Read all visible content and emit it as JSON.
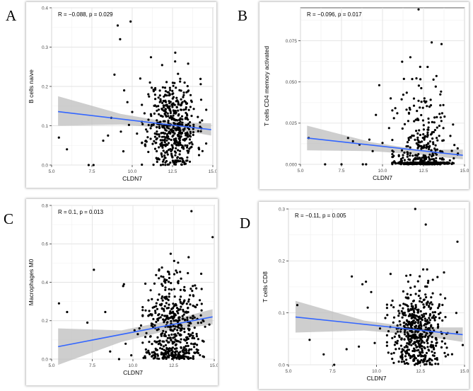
{
  "figure": {
    "labels": [
      "A",
      "B",
      "C",
      "D"
    ]
  },
  "chart_data": [
    {
      "panel": "A",
      "type": "scatter",
      "xlabel": "CLDN7",
      "ylabel": "B cells naive",
      "stat_r": "R = −0.088,",
      "stat_p": "p = 0.029",
      "xlim": [
        5,
        15
      ],
      "ylim": [
        0,
        0.4
      ],
      "xticks": [
        5.0,
        7.5,
        10.0,
        12.5,
        15.0
      ],
      "xticklabels": [
        "5.0",
        "7.5",
        "10.0",
        "12.5",
        "15.0"
      ],
      "yticks": [
        0.0,
        0.1,
        0.2,
        0.3,
        0.4
      ],
      "yticklabels": [
        "0.0",
        "0.1",
        "0.2",
        "0.3",
        "0.4"
      ],
      "fit": {
        "x": [
          5.4,
          14.9
        ],
        "y": [
          0.136,
          0.09
        ]
      },
      "ci": {
        "x": [
          5.4,
          9.3,
          12.2,
          14.9
        ],
        "upper": [
          0.175,
          0.13,
          0.11,
          0.106
        ],
        "lower": [
          0.1,
          0.103,
          0.094,
          0.075
        ]
      },
      "sparse_points": [
        [
          5.45,
          0.07
        ],
        [
          5.95,
          0.04
        ],
        [
          7.3,
          0.0
        ],
        [
          7.6,
          0.0
        ],
        [
          8.2,
          0.062
        ],
        [
          8.5,
          0.075
        ],
        [
          8.7,
          0.12
        ],
        [
          9.1,
          0.355
        ],
        [
          9.25,
          0.32
        ],
        [
          9.45,
          0.035
        ],
        [
          9.5,
          0.19
        ],
        [
          9.9,
          0.365
        ],
        [
          10.0,
          0.135
        ],
        [
          10.15,
          0.405
        ],
        [
          10.3,
          0.08
        ],
        [
          10.5,
          0.22
        ],
        [
          9.7,
          0.16
        ],
        [
          10.8,
          0.05
        ],
        [
          9.3,
          0.085
        ],
        [
          8.9,
          0.23
        ],
        [
          10.6,
          0.11
        ],
        [
          11.1,
          0.21
        ],
        [
          11.0,
          0.18
        ],
        [
          9.8,
          0.102
        ]
      ],
      "cloud": {
        "x_center": 12.5,
        "x_spread": 1.25,
        "y_mean": 0.1,
        "y_sd": 0.06,
        "n": 520,
        "ymax": 0.35,
        "seed": 11
      }
    },
    {
      "panel": "B",
      "type": "scatter",
      "xlabel": "CLDN7",
      "ylabel": "T cells CD4 memory activated",
      "stat_r": "R = −0.096,",
      "stat_p": "p = 0.017",
      "xlim": [
        5,
        15
      ],
      "ylim": [
        0,
        0.095
      ],
      "xticks": [
        5.0,
        7.5,
        10.0,
        12.5,
        15.0
      ],
      "xticklabels": [
        "5.0",
        "7.5",
        "10.0",
        "12.5",
        "15.0"
      ],
      "yticks": [
        0.0,
        0.025,
        0.05,
        0.075
      ],
      "yticklabels": [
        "0.000",
        "0.025",
        "0.050",
        "0.075"
      ],
      "fit": {
        "x": [
          5.4,
          14.9
        ],
        "y": [
          0.016,
          0.0055
        ]
      },
      "ci": {
        "x": [
          5.4,
          9.3,
          12.2,
          14.9
        ],
        "upper": [
          0.0235,
          0.0135,
          0.009,
          0.009
        ],
        "lower": [
          0.0085,
          0.008,
          0.006,
          0.003
        ]
      },
      "sparse_points": [
        [
          5.5,
          0.016
        ],
        [
          6.5,
          0.0
        ],
        [
          7.5,
          0.0
        ],
        [
          7.9,
          0.016
        ],
        [
          8.2,
          0.014
        ],
        [
          8.6,
          0.012
        ],
        [
          8.8,
          0.0
        ],
        [
          9.0,
          0.0
        ],
        [
          9.2,
          0.015
        ],
        [
          9.4,
          0.008
        ],
        [
          9.6,
          0.03
        ],
        [
          9.8,
          0.048
        ],
        [
          10.0,
          0.013
        ],
        [
          10.4,
          0.022
        ],
        [
          10.7,
          0.028
        ],
        [
          10.9,
          0.031
        ],
        [
          11.0,
          0.005
        ],
        [
          12.2,
          0.094
        ],
        [
          13.0,
          0.074
        ],
        [
          13.6,
          0.073
        ],
        [
          11.7,
          0.065
        ],
        [
          10.5,
          0.04
        ]
      ],
      "cloud": {
        "x_center": 12.4,
        "x_spread": 1.4,
        "y_mean": 0.006,
        "y_sd": 0.022,
        "n": 520,
        "ymax": 0.073,
        "seed": 23,
        "zero_frac": 0.45
      }
    },
    {
      "panel": "C",
      "type": "scatter",
      "xlabel": "CLDN7",
      "ylabel": "Macrophages M0",
      "stat_r": "R = 0.1,",
      "stat_p": "p = 0.013",
      "xlim": [
        5,
        15
      ],
      "ylim": [
        0,
        0.8
      ],
      "xticks": [
        5.0,
        7.5,
        10.0,
        12.5,
        15.0
      ],
      "xticklabels": [
        "5.0",
        "7.5",
        "10.0",
        "12.5",
        "15.0"
      ],
      "yticks": [
        0.0,
        0.2,
        0.4,
        0.6,
        0.8
      ],
      "yticklabels": [
        "0.0",
        "0.2",
        "0.4",
        "0.6",
        "0.8"
      ],
      "fit": {
        "x": [
          5.4,
          14.9
        ],
        "y": [
          0.065,
          0.22
        ]
      },
      "ci": {
        "x": [
          5.4,
          9.3,
          12.2,
          14.9
        ],
        "upper": [
          0.16,
          0.15,
          0.2,
          0.26
        ],
        "lower": [
          -0.03,
          0.09,
          0.15,
          0.18
        ]
      },
      "sparse_points": [
        [
          5.45,
          0.29
        ],
        [
          5.95,
          0.245
        ],
        [
          7.2,
          0.19
        ],
        [
          7.6,
          0.465
        ],
        [
          8.3,
          0.245
        ],
        [
          8.6,
          0.04
        ],
        [
          9.15,
          0.0
        ],
        [
          9.4,
          0.38
        ],
        [
          9.45,
          0.39
        ],
        [
          9.55,
          0.08
        ],
        [
          9.9,
          0.02
        ],
        [
          10.1,
          0.15
        ],
        [
          10.4,
          0.16
        ],
        [
          10.5,
          0.175
        ],
        [
          10.8,
          0.05
        ],
        [
          10.3,
          0.13
        ],
        [
          11.0,
          0.09
        ],
        [
          14.9,
          0.635
        ],
        [
          13.6,
          0.77
        ],
        [
          14.2,
          0.19
        ],
        [
          14.7,
          0.18
        ]
      ],
      "cloud": {
        "x_center": 12.5,
        "x_spread": 1.35,
        "y_mean": 0.16,
        "y_sd": 0.16,
        "n": 520,
        "ymax": 0.72,
        "seed": 37
      }
    },
    {
      "panel": "D",
      "type": "scatter",
      "xlabel": "CLDN7",
      "ylabel": "T cells CD8",
      "stat_r": "R = −0.11,",
      "stat_p": "p = 0.005",
      "xlim": [
        5,
        15
      ],
      "ylim": [
        0,
        0.3
      ],
      "xticks": [
        5.0,
        7.5,
        10.0,
        12.5,
        15.0
      ],
      "xticklabels": [
        "5.0",
        "7.5",
        "10.0",
        "12.5",
        "15.0"
      ],
      "yticks": [
        0.0,
        0.1,
        0.2,
        0.3
      ],
      "yticklabels": [
        "0.0",
        "0.1",
        "0.2",
        "0.3"
      ],
      "fit": {
        "x": [
          5.4,
          14.9
        ],
        "y": [
          0.092,
          0.058
        ]
      },
      "ci": {
        "x": [
          5.4,
          9.3,
          12.2,
          14.9
        ],
        "upper": [
          0.123,
          0.085,
          0.072,
          0.072
        ],
        "lower": [
          0.062,
          0.066,
          0.058,
          0.044
        ]
      },
      "sparse_points": [
        [
          5.5,
          0.115
        ],
        [
          6.2,
          0.048
        ],
        [
          7.0,
          0.02
        ],
        [
          7.6,
          0.0
        ],
        [
          8.3,
          0.03
        ],
        [
          8.6,
          0.17
        ],
        [
          9.0,
          0.035
        ],
        [
          9.2,
          0.155
        ],
        [
          9.4,
          0.16
        ],
        [
          9.5,
          0.11
        ],
        [
          9.7,
          0.14
        ],
        [
          9.9,
          0.042
        ],
        [
          10.2,
          0.07
        ],
        [
          10.5,
          0.09
        ],
        [
          10.8,
          0.175
        ],
        [
          11.1,
          0.06
        ],
        [
          14.6,
          0.237
        ],
        [
          12.2,
          0.3
        ],
        [
          12.8,
          0.27
        ],
        [
          14.9,
          0.038
        ],
        [
          13.9,
          0.128
        ]
      ],
      "cloud": {
        "x_center": 12.4,
        "x_spread": 1.3,
        "y_mean": 0.06,
        "y_sd": 0.045,
        "n": 520,
        "ymax": 0.26,
        "seed": 53
      }
    }
  ]
}
